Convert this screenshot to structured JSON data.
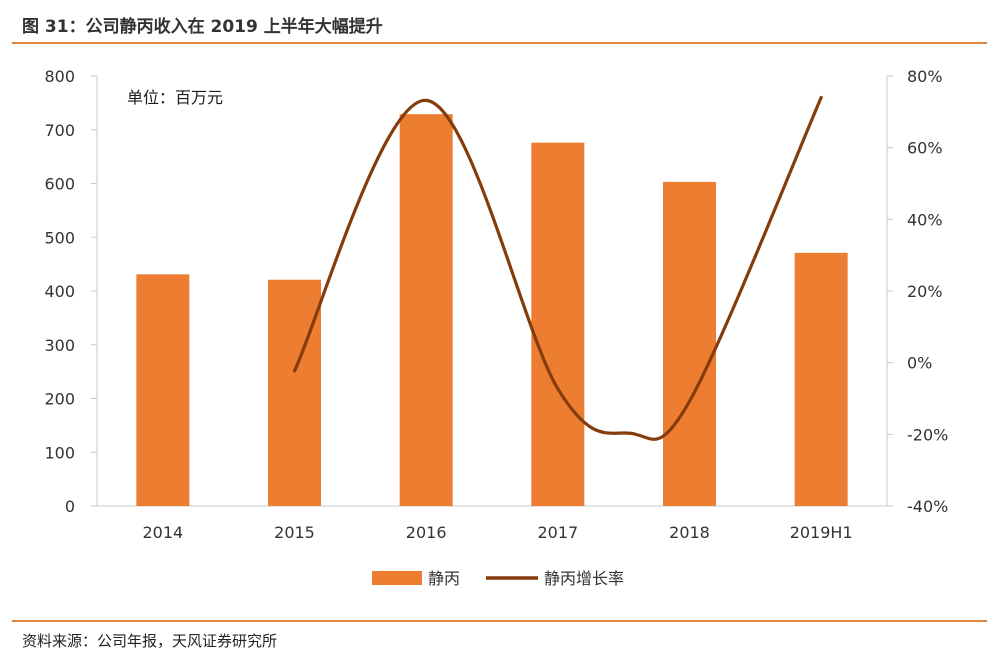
{
  "header": {
    "title": "图 31：公司静丙收入在 2019 上半年大幅提升"
  },
  "footer": {
    "source": "资料来源：公司年报，天风证券研究所"
  },
  "chart_data": {
    "type": "bar",
    "unit_note": "单位：百万元",
    "categories": [
      "2014",
      "2015",
      "2016",
      "2017",
      "2018",
      "2019H1"
    ],
    "series": [
      {
        "name": "静丙",
        "type": "bar",
        "axis": "left",
        "color": "#ed7d31",
        "values": [
          431,
          421,
          729,
          676,
          603,
          471
        ]
      },
      {
        "name": "静丙增长率",
        "type": "line",
        "axis": "right",
        "color": "#843c0c",
        "smooth": true,
        "values": [
          null,
          -2.3,
          73.2,
          -7.3,
          -10.8,
          74.0
        ]
      }
    ],
    "extra_line_points": [
      {
        "x": 3.55,
        "y": -19.7
      }
    ],
    "yaxis_left": {
      "min": 0,
      "max": 800,
      "ticks": [
        "0",
        "100",
        "200",
        "300",
        "400",
        "500",
        "600",
        "700",
        "800"
      ]
    },
    "yaxis_right": {
      "min": -40,
      "max": 80,
      "ticks": [
        "-40%",
        "-20%",
        "0%",
        "20%",
        "40%",
        "60%",
        "80%"
      ]
    },
    "grid": false,
    "legend_position": "bottom"
  }
}
